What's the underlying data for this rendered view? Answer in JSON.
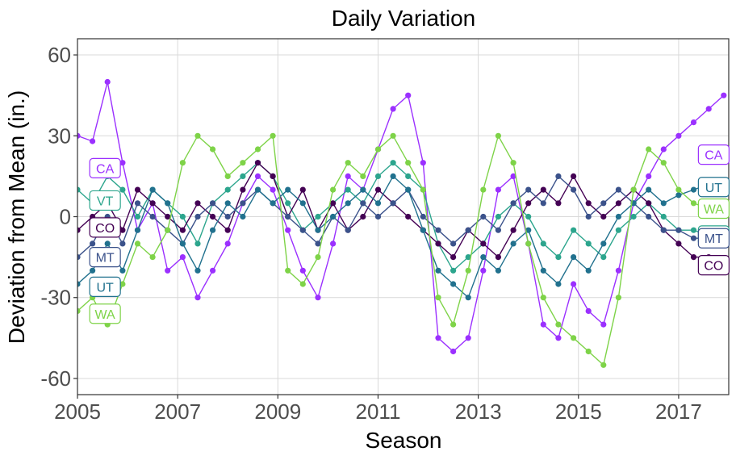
{
  "chart_data": {
    "type": "line",
    "title": "Daily Variation",
    "xlabel": "Season",
    "ylabel": "Deviation from Mean (in.)",
    "xlim": [
      2005,
      2018
    ],
    "ylim": [
      -66,
      66
    ],
    "x_ticks": [
      2005,
      2007,
      2009,
      2011,
      2013,
      2015,
      2017
    ],
    "y_ticks": [
      60,
      30,
      0,
      -30,
      -60
    ],
    "y_tick_labels": [
      "60",
      "30",
      "0",
      "-30",
      "-60"
    ],
    "grid": true,
    "legend": "direct labels at left and right ends of series",
    "series": [
      {
        "name": "CA",
        "color": "#9b30ff",
        "label_start_y": 18,
        "label_end_y": 23,
        "points": [
          [
            2005.0,
            30
          ],
          [
            2005.3,
            28
          ],
          [
            2005.6,
            50
          ],
          [
            2005.9,
            20
          ],
          [
            2006.2,
            -5
          ],
          [
            2006.5,
            5
          ],
          [
            2006.8,
            -20
          ],
          [
            2007.1,
            -15
          ],
          [
            2007.4,
            -30
          ],
          [
            2007.7,
            -20
          ],
          [
            2008.0,
            -10
          ],
          [
            2008.3,
            5
          ],
          [
            2008.6,
            15
          ],
          [
            2008.9,
            10
          ],
          [
            2009.2,
            -5
          ],
          [
            2009.5,
            -20
          ],
          [
            2009.8,
            -30
          ],
          [
            2010.1,
            -10
          ],
          [
            2010.4,
            15
          ],
          [
            2010.7,
            10
          ],
          [
            2011.0,
            25
          ],
          [
            2011.3,
            40
          ],
          [
            2011.6,
            45
          ],
          [
            2011.9,
            20
          ],
          [
            2012.2,
            -45
          ],
          [
            2012.5,
            -50
          ],
          [
            2012.8,
            -45
          ],
          [
            2013.1,
            -20
          ],
          [
            2013.4,
            10
          ],
          [
            2013.7,
            15
          ],
          [
            2014.0,
            -10
          ],
          [
            2014.3,
            -40
          ],
          [
            2014.6,
            -45
          ],
          [
            2014.9,
            -25
          ],
          [
            2015.2,
            -35
          ],
          [
            2015.5,
            -40
          ],
          [
            2015.8,
            -20
          ],
          [
            2016.1,
            5
          ],
          [
            2016.4,
            15
          ],
          [
            2016.7,
            25
          ],
          [
            2017.0,
            30
          ],
          [
            2017.3,
            35
          ],
          [
            2017.6,
            40
          ],
          [
            2017.9,
            45
          ]
        ]
      },
      {
        "name": "VT",
        "color": "#2ca58d",
        "label_start_y": 6,
        "label_end_y": -7,
        "points": [
          [
            2005.0,
            10
          ],
          [
            2005.3,
            5
          ],
          [
            2005.6,
            15
          ],
          [
            2005.9,
            10
          ],
          [
            2006.2,
            0
          ],
          [
            2006.5,
            10
          ],
          [
            2006.8,
            5
          ],
          [
            2007.1,
            0
          ],
          [
            2007.4,
            -10
          ],
          [
            2007.7,
            5
          ],
          [
            2008.0,
            10
          ],
          [
            2008.3,
            15
          ],
          [
            2008.6,
            20
          ],
          [
            2008.9,
            15
          ],
          [
            2009.2,
            5
          ],
          [
            2009.5,
            -5
          ],
          [
            2009.8,
            0
          ],
          [
            2010.1,
            5
          ],
          [
            2010.4,
            10
          ],
          [
            2010.7,
            5
          ],
          [
            2011.0,
            15
          ],
          [
            2011.3,
            20
          ],
          [
            2011.6,
            15
          ],
          [
            2011.9,
            10
          ],
          [
            2012.2,
            -10
          ],
          [
            2012.5,
            -20
          ],
          [
            2012.8,
            -15
          ],
          [
            2013.1,
            -10
          ],
          [
            2013.4,
            0
          ],
          [
            2013.7,
            5
          ],
          [
            2014.0,
            0
          ],
          [
            2014.3,
            -10
          ],
          [
            2014.6,
            -15
          ],
          [
            2014.9,
            -5
          ],
          [
            2015.2,
            -10
          ],
          [
            2015.5,
            -15
          ],
          [
            2015.8,
            -5
          ],
          [
            2016.1,
            0
          ],
          [
            2016.4,
            5
          ],
          [
            2016.7,
            0
          ],
          [
            2017.0,
            -5
          ],
          [
            2017.3,
            -5
          ],
          [
            2017.6,
            -7
          ],
          [
            2017.9,
            -7
          ]
        ]
      },
      {
        "name": "CO",
        "color": "#440154",
        "label_start_y": -4,
        "label_end_y": -18,
        "points": [
          [
            2005.0,
            -5
          ],
          [
            2005.3,
            0
          ],
          [
            2005.6,
            5
          ],
          [
            2005.9,
            -5
          ],
          [
            2006.2,
            10
          ],
          [
            2006.5,
            5
          ],
          [
            2006.8,
            0
          ],
          [
            2007.1,
            -5
          ],
          [
            2007.4,
            5
          ],
          [
            2007.7,
            0
          ],
          [
            2008.0,
            -5
          ],
          [
            2008.3,
            10
          ],
          [
            2008.6,
            20
          ],
          [
            2008.9,
            15
          ],
          [
            2009.2,
            0
          ],
          [
            2009.5,
            10
          ],
          [
            2009.8,
            -5
          ],
          [
            2010.1,
            5
          ],
          [
            2010.4,
            -5
          ],
          [
            2010.7,
            0
          ],
          [
            2011.0,
            10
          ],
          [
            2011.3,
            5
          ],
          [
            2011.6,
            0
          ],
          [
            2011.9,
            -5
          ],
          [
            2012.2,
            -10
          ],
          [
            2012.5,
            -15
          ],
          [
            2012.8,
            -5
          ],
          [
            2013.1,
            -10
          ],
          [
            2013.4,
            -15
          ],
          [
            2013.7,
            -5
          ],
          [
            2014.0,
            5
          ],
          [
            2014.3,
            10
          ],
          [
            2014.6,
            5
          ],
          [
            2014.9,
            15
          ],
          [
            2015.2,
            5
          ],
          [
            2015.5,
            0
          ],
          [
            2015.8,
            5
          ],
          [
            2016.1,
            10
          ],
          [
            2016.4,
            5
          ],
          [
            2016.7,
            -5
          ],
          [
            2017.0,
            -10
          ],
          [
            2017.3,
            -15
          ],
          [
            2017.6,
            -15
          ],
          [
            2017.9,
            -18
          ]
        ]
      },
      {
        "name": "MT",
        "color": "#3b528b",
        "label_start_y": -15,
        "label_end_y": -8,
        "points": [
          [
            2005.0,
            -15
          ],
          [
            2005.3,
            -10
          ],
          [
            2005.6,
            0
          ],
          [
            2005.9,
            -10
          ],
          [
            2006.2,
            5
          ],
          [
            2006.5,
            0
          ],
          [
            2006.8,
            -5
          ],
          [
            2007.1,
            -10
          ],
          [
            2007.4,
            0
          ],
          [
            2007.7,
            5
          ],
          [
            2008.0,
            0
          ],
          [
            2008.3,
            5
          ],
          [
            2008.6,
            10
          ],
          [
            2008.9,
            5
          ],
          [
            2009.2,
            0
          ],
          [
            2009.5,
            -5
          ],
          [
            2009.8,
            -10
          ],
          [
            2010.1,
            0
          ],
          [
            2010.4,
            -5
          ],
          [
            2010.7,
            5
          ],
          [
            2011.0,
            0
          ],
          [
            2011.3,
            5
          ],
          [
            2011.6,
            10
          ],
          [
            2011.9,
            0
          ],
          [
            2012.2,
            -5
          ],
          [
            2012.5,
            -10
          ],
          [
            2012.8,
            -5
          ],
          [
            2013.1,
            0
          ],
          [
            2013.4,
            -5
          ],
          [
            2013.7,
            5
          ],
          [
            2014.0,
            10
          ],
          [
            2014.3,
            5
          ],
          [
            2014.6,
            15
          ],
          [
            2014.9,
            10
          ],
          [
            2015.2,
            0
          ],
          [
            2015.5,
            5
          ],
          [
            2015.8,
            10
          ],
          [
            2016.1,
            5
          ],
          [
            2016.4,
            0
          ],
          [
            2016.7,
            -5
          ],
          [
            2017.0,
            -5
          ],
          [
            2017.3,
            -8
          ],
          [
            2017.6,
            -8
          ],
          [
            2017.9,
            -8
          ]
        ]
      },
      {
        "name": "UT",
        "color": "#21718e",
        "label_start_y": -26,
        "label_end_y": 11,
        "points": [
          [
            2005.0,
            -25
          ],
          [
            2005.3,
            -20
          ],
          [
            2005.6,
            -10
          ],
          [
            2005.9,
            -20
          ],
          [
            2006.2,
            -5
          ],
          [
            2006.5,
            10
          ],
          [
            2006.8,
            5
          ],
          [
            2007.1,
            -10
          ],
          [
            2007.4,
            -20
          ],
          [
            2007.7,
            -5
          ],
          [
            2008.0,
            5
          ],
          [
            2008.3,
            0
          ],
          [
            2008.6,
            10
          ],
          [
            2008.9,
            5
          ],
          [
            2009.2,
            10
          ],
          [
            2009.5,
            5
          ],
          [
            2009.8,
            -5
          ],
          [
            2010.1,
            0
          ],
          [
            2010.4,
            5
          ],
          [
            2010.7,
            10
          ],
          [
            2011.0,
            5
          ],
          [
            2011.3,
            15
          ],
          [
            2011.6,
            10
          ],
          [
            2011.9,
            -5
          ],
          [
            2012.2,
            -20
          ],
          [
            2012.5,
            -25
          ],
          [
            2012.8,
            -30
          ],
          [
            2013.1,
            -15
          ],
          [
            2013.4,
            -20
          ],
          [
            2013.7,
            -10
          ],
          [
            2014.0,
            -5
          ],
          [
            2014.3,
            -20
          ],
          [
            2014.6,
            -25
          ],
          [
            2014.9,
            -15
          ],
          [
            2015.2,
            -20
          ],
          [
            2015.5,
            -10
          ],
          [
            2015.8,
            0
          ],
          [
            2016.1,
            5
          ],
          [
            2016.4,
            10
          ],
          [
            2016.7,
            5
          ],
          [
            2017.0,
            8
          ],
          [
            2017.3,
            10
          ],
          [
            2017.6,
            12
          ],
          [
            2017.9,
            11
          ]
        ]
      },
      {
        "name": "WA",
        "color": "#7ed348",
        "label_start_y": -36,
        "label_end_y": 3,
        "points": [
          [
            2005.0,
            -35
          ],
          [
            2005.3,
            -30
          ],
          [
            2005.6,
            -40
          ],
          [
            2005.9,
            -25
          ],
          [
            2006.2,
            -10
          ],
          [
            2006.5,
            -15
          ],
          [
            2006.8,
            -5
          ],
          [
            2007.1,
            20
          ],
          [
            2007.4,
            30
          ],
          [
            2007.7,
            25
          ],
          [
            2008.0,
            15
          ],
          [
            2008.3,
            20
          ],
          [
            2008.6,
            25
          ],
          [
            2008.9,
            30
          ],
          [
            2009.2,
            -20
          ],
          [
            2009.5,
            -25
          ],
          [
            2009.8,
            -15
          ],
          [
            2010.1,
            10
          ],
          [
            2010.4,
            20
          ],
          [
            2010.7,
            15
          ],
          [
            2011.0,
            25
          ],
          [
            2011.3,
            30
          ],
          [
            2011.6,
            20
          ],
          [
            2011.9,
            10
          ],
          [
            2012.2,
            -30
          ],
          [
            2012.5,
            -40
          ],
          [
            2012.8,
            -20
          ],
          [
            2013.1,
            10
          ],
          [
            2013.4,
            30
          ],
          [
            2013.7,
            20
          ],
          [
            2014.0,
            -10
          ],
          [
            2014.3,
            -30
          ],
          [
            2014.6,
            -40
          ],
          [
            2014.9,
            -45
          ],
          [
            2015.2,
            -50
          ],
          [
            2015.5,
            -55
          ],
          [
            2015.8,
            -30
          ],
          [
            2016.1,
            10
          ],
          [
            2016.4,
            25
          ],
          [
            2016.7,
            20
          ],
          [
            2017.0,
            10
          ],
          [
            2017.3,
            5
          ],
          [
            2017.6,
            3
          ],
          [
            2017.9,
            3
          ]
        ]
      }
    ]
  }
}
